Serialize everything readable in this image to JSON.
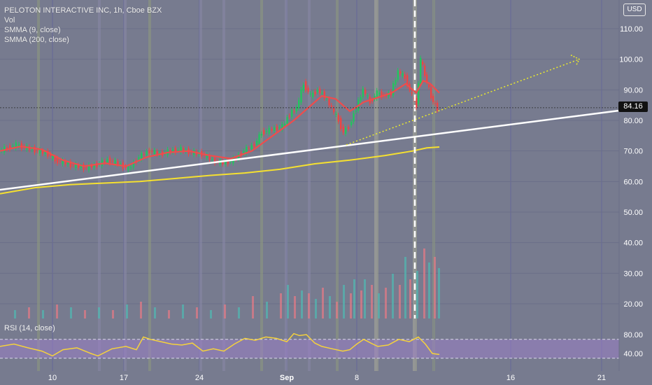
{
  "header": {
    "title": "PELOTON INTERACTIVE INC, 1h, Cboe BZX",
    "indicators": [
      "Vol",
      "SMMA (9, close)",
      "SMMA (200, close)"
    ],
    "currency": "USD",
    "last_price": "84.16"
  },
  "rsi": {
    "label": "RSI (14, close)",
    "ticks": [
      "80.00",
      "40.00"
    ]
  },
  "colors": {
    "background": "#777b8f",
    "smma9": "#ee4d4d",
    "smma200": "#f5e030",
    "trendline": "#ffffff",
    "projection": "#ecec2a",
    "candle_up": "#22c55e",
    "candle_down": "#ef4444",
    "rsi_line": "#f5d23c",
    "rsi_band": "#9a7fc6"
  },
  "chart_data": {
    "type": "candlestick",
    "title": "PELOTON INTERACTIVE INC, 1h, Cboe BZX",
    "x_ticks": [
      "10",
      "17",
      "24",
      "Sep",
      "8",
      "16",
      "21"
    ],
    "y_ticks": [
      "110.00",
      "100.00",
      "90.00",
      "80.00",
      "70.00",
      "60.00",
      "50.00",
      "40.00",
      "30.00",
      "20.00"
    ],
    "ylim": [
      16,
      114
    ],
    "last_price": 84.16,
    "price_path": [
      [
        0,
        70
      ],
      [
        12,
        71
      ],
      [
        25,
        72
      ],
      [
        40,
        71
      ],
      [
        55,
        70
      ],
      [
        70,
        69
      ],
      [
        80,
        67
      ],
      [
        95,
        66
      ],
      [
        110,
        65
      ],
      [
        125,
        64.5
      ],
      [
        140,
        65.5
      ],
      [
        155,
        67
      ],
      [
        170,
        66
      ],
      [
        185,
        64
      ],
      [
        200,
        68
      ],
      [
        215,
        70
      ],
      [
        230,
        69
      ],
      [
        245,
        70
      ],
      [
        260,
        70.5
      ],
      [
        275,
        69.5
      ],
      [
        290,
        69
      ],
      [
        305,
        67
      ],
      [
        320,
        66
      ],
      [
        335,
        67
      ],
      [
        350,
        70
      ],
      [
        365,
        72
      ],
      [
        375,
        76
      ],
      [
        390,
        77
      ],
      [
        405,
        78
      ],
      [
        415,
        82
      ],
      [
        425,
        84
      ],
      [
        435,
        92
      ],
      [
        445,
        88
      ],
      [
        455,
        90
      ],
      [
        465,
        88
      ],
      [
        475,
        84
      ],
      [
        485,
        80
      ],
      [
        492,
        76
      ],
      [
        500,
        78
      ],
      [
        510,
        84
      ],
      [
        520,
        90
      ],
      [
        530,
        86
      ],
      [
        540,
        89
      ],
      [
        550,
        88
      ],
      [
        560,
        89
      ],
      [
        570,
        96
      ],
      [
        580,
        94
      ],
      [
        590,
        88
      ],
      [
        596,
        85
      ],
      [
        602,
        100
      ],
      [
        608,
        95
      ],
      [
        614,
        90
      ],
      [
        620,
        86
      ],
      [
        626,
        84
      ]
    ],
    "series": [
      {
        "name": "SMMA (9, close)",
        "points": [
          [
            0,
            70
          ],
          [
            30,
            71.5
          ],
          [
            60,
            70.5
          ],
          [
            90,
            67
          ],
          [
            120,
            65
          ],
          [
            150,
            66
          ],
          [
            180,
            65
          ],
          [
            210,
            68
          ],
          [
            240,
            69.5
          ],
          [
            270,
            70
          ],
          [
            300,
            68.5
          ],
          [
            330,
            67.5
          ],
          [
            360,
            70
          ],
          [
            390,
            75
          ],
          [
            420,
            80
          ],
          [
            440,
            84
          ],
          [
            460,
            88
          ],
          [
            480,
            87
          ],
          [
            500,
            83
          ],
          [
            520,
            86
          ],
          [
            540,
            87.5
          ],
          [
            560,
            89
          ],
          [
            580,
            92
          ],
          [
            595,
            89
          ],
          [
            605,
            93
          ],
          [
            615,
            92
          ],
          [
            628,
            89
          ]
        ]
      },
      {
        "name": "SMMA (200, close)",
        "points": [
          [
            0,
            56
          ],
          [
            50,
            58
          ],
          [
            100,
            59
          ],
          [
            150,
            59.5
          ],
          [
            200,
            60
          ],
          [
            250,
            61
          ],
          [
            300,
            62
          ],
          [
            350,
            62.8
          ],
          [
            400,
            64
          ],
          [
            450,
            65.8
          ],
          [
            500,
            67
          ],
          [
            550,
            68.5
          ],
          [
            590,
            70
          ],
          [
            610,
            71
          ],
          [
            628,
            71.3
          ]
        ]
      }
    ],
    "annotations": {
      "trendline": [
        [
          0,
          57.3
        ],
        [
          885,
          83.2
        ]
      ],
      "projection_dotted": [
        [
          495,
          72
        ],
        [
          828,
          100
        ]
      ],
      "dashed_vertical_at_x": 593
    },
    "volume_bars": [
      [
        20,
        3
      ],
      [
        40,
        4
      ],
      [
        60,
        3
      ],
      [
        80,
        5
      ],
      [
        100,
        4
      ],
      [
        120,
        3
      ],
      [
        140,
        4
      ],
      [
        160,
        3
      ],
      [
        180,
        5
      ],
      [
        200,
        6
      ],
      [
        220,
        4
      ],
      [
        240,
        3
      ],
      [
        260,
        5
      ],
      [
        280,
        4
      ],
      [
        300,
        3
      ],
      [
        320,
        5
      ],
      [
        340,
        4
      ],
      [
        360,
        8
      ],
      [
        380,
        6
      ],
      [
        400,
        9
      ],
      [
        410,
        12
      ],
      [
        420,
        8
      ],
      [
        430,
        10
      ],
      [
        440,
        9
      ],
      [
        450,
        7
      ],
      [
        460,
        11
      ],
      [
        470,
        8
      ],
      [
        480,
        6
      ],
      [
        490,
        12
      ],
      [
        500,
        9
      ],
      [
        505,
        14
      ],
      [
        515,
        10
      ],
      [
        520,
        14
      ],
      [
        530,
        12
      ],
      [
        540,
        9
      ],
      [
        550,
        11
      ],
      [
        560,
        16
      ],
      [
        570,
        12
      ],
      [
        578,
        22
      ],
      [
        585,
        14
      ],
      [
        595,
        17
      ],
      [
        605,
        25
      ],
      [
        612,
        20
      ],
      [
        620,
        22
      ],
      [
        626,
        18
      ]
    ],
    "rsi": {
      "ylim": [
        25,
        90
      ],
      "levels": [
        70,
        30
      ],
      "points": [
        [
          0,
          55
        ],
        [
          20,
          60
        ],
        [
          40,
          52
        ],
        [
          60,
          45
        ],
        [
          75,
          35
        ],
        [
          90,
          48
        ],
        [
          110,
          52
        ],
        [
          130,
          40
        ],
        [
          140,
          35
        ],
        [
          160,
          50
        ],
        [
          180,
          55
        ],
        [
          195,
          48
        ],
        [
          205,
          75
        ],
        [
          215,
          70
        ],
        [
          230,
          65
        ],
        [
          245,
          60
        ],
        [
          260,
          58
        ],
        [
          275,
          62
        ],
        [
          290,
          45
        ],
        [
          305,
          50
        ],
        [
          320,
          45
        ],
        [
          335,
          60
        ],
        [
          350,
          72
        ],
        [
          365,
          68
        ],
        [
          380,
          75
        ],
        [
          395,
          72
        ],
        [
          410,
          65
        ],
        [
          420,
          82
        ],
        [
          428,
          78
        ],
        [
          438,
          80
        ],
        [
          450,
          62
        ],
        [
          460,
          55
        ],
        [
          475,
          50
        ],
        [
          490,
          45
        ],
        [
          500,
          48
        ],
        [
          510,
          60
        ],
        [
          520,
          70
        ],
        [
          530,
          62
        ],
        [
          540,
          55
        ],
        [
          555,
          58
        ],
        [
          570,
          70
        ],
        [
          585,
          65
        ],
        [
          598,
          75
        ],
        [
          608,
          60
        ],
        [
          618,
          40
        ],
        [
          628,
          38
        ]
      ]
    }
  }
}
